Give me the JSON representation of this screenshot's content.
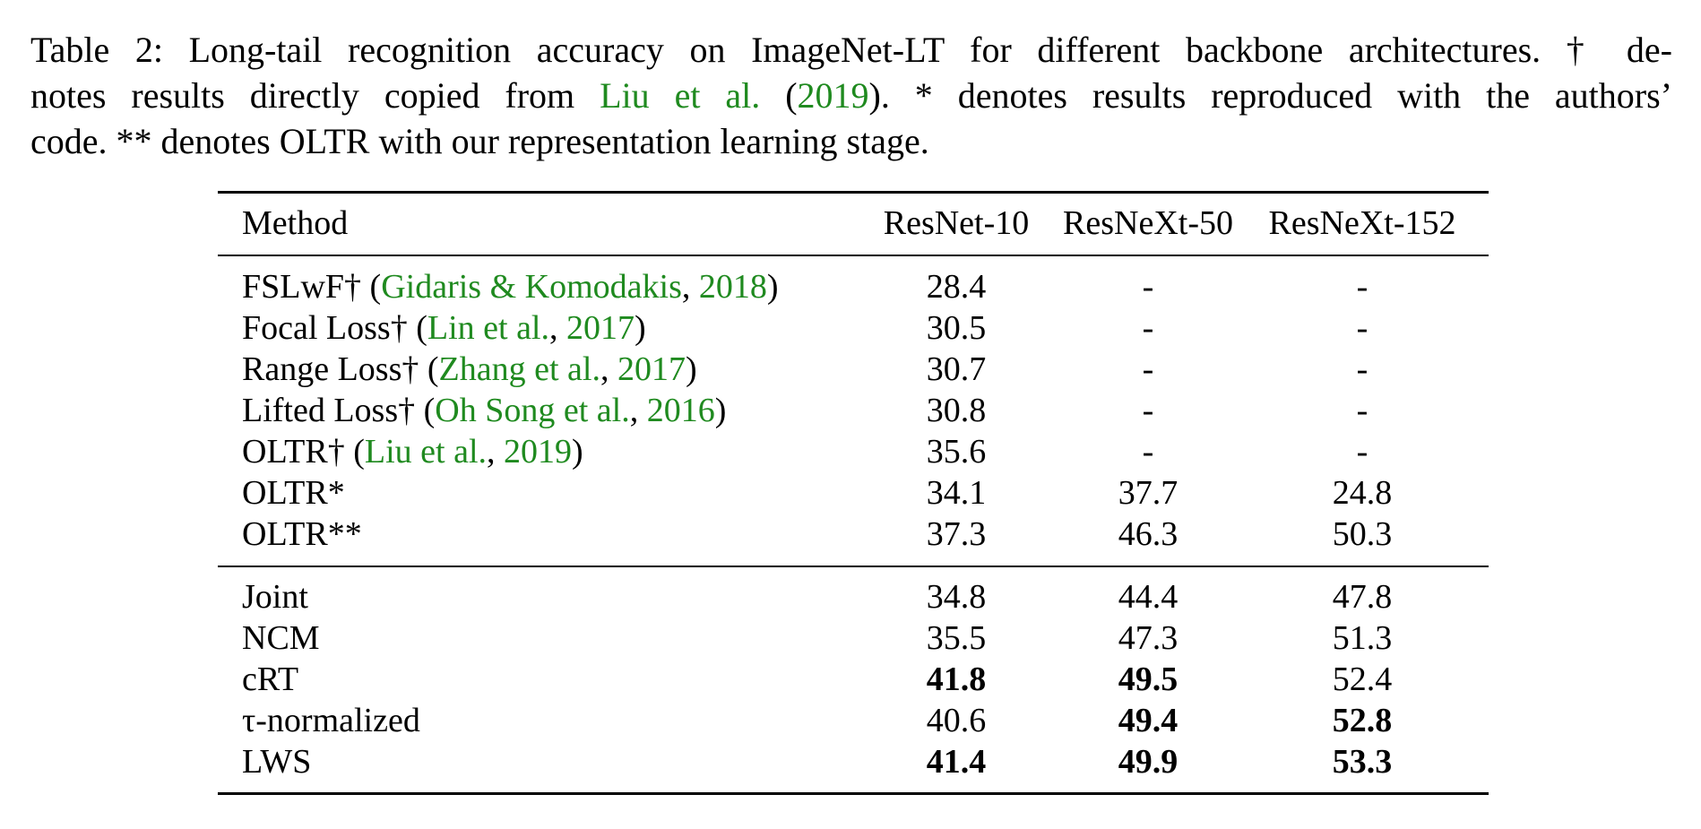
{
  "caption": {
    "lines": [
      [
        "Table 2: Long-tail recognition accuracy on ImageNet-LT for different backbone architectures. † de-"
      ],
      [
        "notes results directly copied from ",
        "Liu et al.",
        " (",
        "2019",
        "). * denotes results reproduced with the authors’"
      ],
      [
        "code. ** denotes OLTR with our representation learning stage."
      ]
    ]
  },
  "table": {
    "header": [
      "Method",
      "ResNet-10",
      "ResNeXt-50",
      "ResNeXt-152"
    ],
    "groups": [
      {
        "rows": [
          {
            "method": [
              "FSLwF† (",
              "Gidaris & Komodakis",
              ", ",
              "2018",
              ")"
            ],
            "values": [
              "28.4",
              "-",
              "-"
            ],
            "bold": [
              false,
              false,
              false
            ]
          },
          {
            "method": [
              "Focal Loss† (",
              "Lin et al.",
              ", ",
              "2017",
              ")"
            ],
            "values": [
              "30.5",
              "-",
              "-"
            ],
            "bold": [
              false,
              false,
              false
            ]
          },
          {
            "method": [
              "Range Loss† (",
              "Zhang et al.",
              ", ",
              "2017",
              ")"
            ],
            "values": [
              "30.7",
              "-",
              "-"
            ],
            "bold": [
              false,
              false,
              false
            ]
          },
          {
            "method": [
              "Lifted Loss† (",
              "Oh Song et al.",
              ", ",
              "2016",
              ")"
            ],
            "values": [
              "30.8",
              "-",
              "-"
            ],
            "bold": [
              false,
              false,
              false
            ]
          },
          {
            "method": [
              "OLTR† (",
              "Liu et al.",
              ", ",
              "2019",
              ")"
            ],
            "values": [
              "35.6",
              "-",
              "-"
            ],
            "bold": [
              false,
              false,
              false
            ]
          },
          {
            "method": [
              "OLTR*"
            ],
            "values": [
              "34.1",
              "37.7",
              "24.8"
            ],
            "bold": [
              false,
              false,
              false
            ]
          },
          {
            "method": [
              "OLTR**"
            ],
            "values": [
              "37.3",
              "46.3",
              "50.3"
            ],
            "bold": [
              false,
              false,
              false
            ]
          }
        ]
      },
      {
        "rows": [
          {
            "method": [
              "Joint"
            ],
            "values": [
              "34.8",
              "44.4",
              "47.8"
            ],
            "bold": [
              false,
              false,
              false
            ]
          },
          {
            "method": [
              "NCM"
            ],
            "values": [
              "35.5",
              "47.3",
              "51.3"
            ],
            "bold": [
              false,
              false,
              false
            ]
          },
          {
            "method": [
              "cRT"
            ],
            "values": [
              "41.8",
              "49.5",
              "52.4"
            ],
            "bold": [
              true,
              true,
              false
            ]
          },
          {
            "method": [
              "τ-normalized"
            ],
            "values": [
              "40.6",
              "49.4",
              "52.8"
            ],
            "bold": [
              false,
              true,
              true
            ]
          },
          {
            "method": [
              "LWS"
            ],
            "values": [
              "41.4",
              "49.9",
              "53.3"
            ],
            "bold": [
              true,
              true,
              true
            ]
          }
        ]
      }
    ]
  }
}
